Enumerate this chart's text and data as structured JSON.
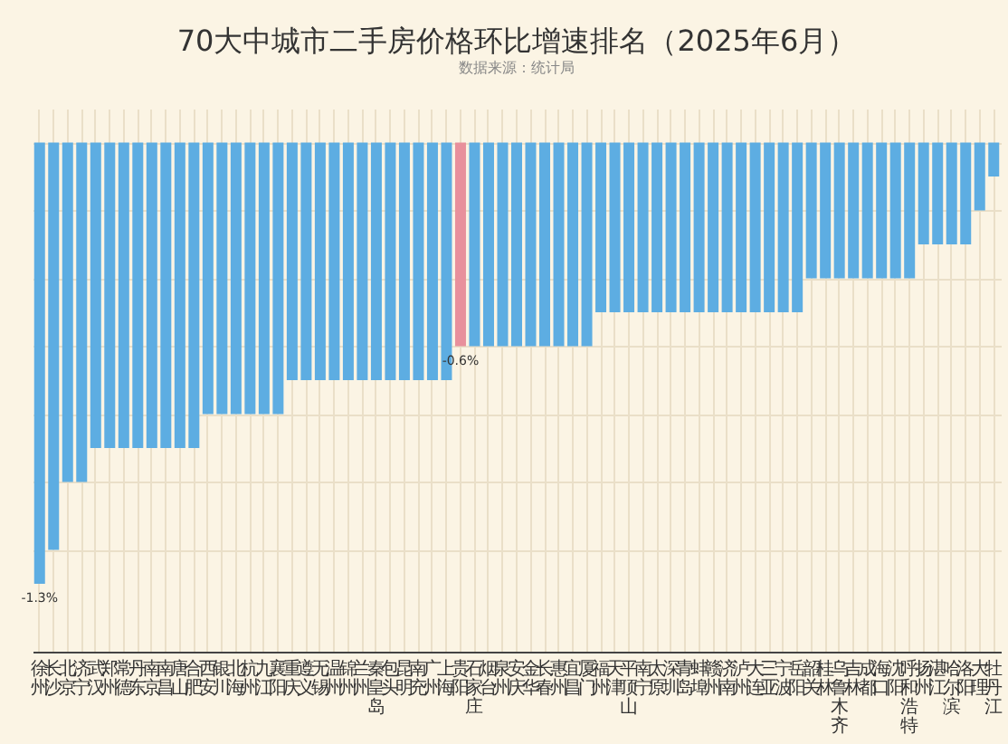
{
  "chart_data": {
    "type": "bar",
    "title": "70大中城市二手房价格环比增速排名（2025年6月）",
    "subtitle": "数据来源：统计局",
    "categories": [
      "徐州",
      "长沙",
      "北京",
      "济宁",
      "武汉",
      "郑州",
      "常德",
      "丹东",
      "南京",
      "南昌",
      "唐山",
      "合肥",
      "西安",
      "银川",
      "北海",
      "杭州",
      "九江",
      "襄阳",
      "重庆",
      "遵义",
      "无锡",
      "温州",
      "锦州",
      "兰州",
      "秦皇岛",
      "包头",
      "昆明",
      "南充",
      "广州",
      "上海",
      "贵阳",
      "石家庄",
      "烟台",
      "泉州",
      "安庆",
      "金华",
      "长春",
      "惠州",
      "宜昌",
      "厦门",
      "福州",
      "天津",
      "平顶山",
      "南宁",
      "太原",
      "深圳",
      "青岛",
      "蚌埠",
      "赣州",
      "济南",
      "泸州",
      "大连",
      "三亚",
      "宁波",
      "岳阳",
      "韶关",
      "桂林",
      "乌鲁木齐",
      "吉林",
      "成都",
      "海口",
      "沈阳",
      "呼和浩特",
      "扬州",
      "湛江",
      "哈尔滨",
      "洛阳",
      "大理",
      "牡丹江"
    ],
    "values": [
      -1.3,
      -1.2,
      -1.0,
      -1.0,
      -0.9,
      -0.9,
      -0.9,
      -0.9,
      -0.9,
      -0.9,
      -0.9,
      -0.9,
      -0.8,
      -0.8,
      -0.8,
      -0.8,
      -0.8,
      -0.8,
      -0.7,
      -0.7,
      -0.7,
      -0.7,
      -0.7,
      -0.7,
      -0.7,
      -0.7,
      -0.7,
      -0.7,
      -0.7,
      -0.7,
      -0.6,
      -0.6,
      -0.6,
      -0.6,
      -0.6,
      -0.6,
      -0.6,
      -0.6,
      -0.6,
      -0.6,
      -0.5,
      -0.5,
      -0.5,
      -0.5,
      -0.5,
      -0.5,
      -0.5,
      -0.5,
      -0.5,
      -0.5,
      -0.5,
      -0.5,
      -0.5,
      -0.5,
      -0.5,
      -0.4,
      -0.4,
      -0.4,
      -0.4,
      -0.4,
      -0.4,
      -0.4,
      -0.4,
      -0.3,
      -0.3,
      -0.3,
      -0.3,
      -0.2,
      -0.1
    ],
    "colors": [
      "#5dade2",
      "#5dade2",
      "#5dade2",
      "#5dade2",
      "#5dade2",
      "#5dade2",
      "#5dade2",
      "#5dade2",
      "#5dade2",
      "#5dade2",
      "#5dade2",
      "#5dade2",
      "#5dade2",
      "#5dade2",
      "#5dade2",
      "#5dade2",
      "#5dade2",
      "#5dade2",
      "#5dade2",
      "#5dade2",
      "#5dade2",
      "#5dade2",
      "#5dade2",
      "#5dade2",
      "#5dade2",
      "#5dade2",
      "#5dade2",
      "#5dade2",
      "#5dade2",
      "#5dade2",
      "#e8909c",
      "#5dade2",
      "#5dade2",
      "#5dade2",
      "#5dade2",
      "#5dade2",
      "#5dade2",
      "#5dade2",
      "#5dade2",
      "#5dade2",
      "#5dade2",
      "#5dade2",
      "#5dade2",
      "#5dade2",
      "#5dade2",
      "#5dade2",
      "#5dade2",
      "#5dade2",
      "#5dade2",
      "#5dade2",
      "#5dade2",
      "#5dade2",
      "#5dade2",
      "#5dade2",
      "#5dade2",
      "#5dade2",
      "#5dade2",
      "#5dade2",
      "#5dade2",
      "#5dade2",
      "#5dade2",
      "#5dade2",
      "#5dade2",
      "#5dade2",
      "#5dade2",
      "#5dade2",
      "#5dade2",
      "#5dade2",
      "#5dade2"
    ],
    "value_labels": [
      "-1.3%",
      null,
      null,
      null,
      null,
      null,
      null,
      null,
      null,
      null,
      null,
      null,
      null,
      null,
      null,
      null,
      null,
      null,
      null,
      null,
      null,
      null,
      null,
      null,
      null,
      null,
      null,
      null,
      null,
      null,
      "-0.6%",
      null,
      null,
      null,
      null,
      null,
      null,
      null,
      null,
      null,
      null,
      null,
      null,
      null,
      null,
      null,
      null,
      null,
      null,
      null,
      null,
      null,
      null,
      null,
      null,
      null,
      null,
      null,
      null,
      null,
      null,
      null,
      null,
      null,
      null,
      null,
      null,
      null,
      null
    ],
    "ylim": [
      -1.5,
      0.1
    ],
    "yticks": [
      -1.2,
      -1.0,
      -0.8,
      -0.6,
      -0.4,
      -0.2,
      0
    ],
    "grid": true,
    "tick_labels": "x",
    "legend": false
  }
}
